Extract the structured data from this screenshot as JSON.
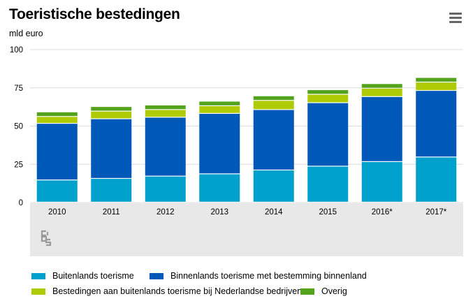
{
  "header": {
    "title": "Toeristische bestedingen",
    "unit": "mld euro"
  },
  "colors": {
    "buitenlands": "#00a1cd",
    "binnenlands": "#0058b8",
    "bestedingen": "#afcb05",
    "overig": "#53a31d",
    "grid": "#dcdcdc",
    "panel": "#e8e8e8"
  },
  "icons": {
    "menu": "hamburger-menu-icon",
    "logo": "cbs-logo-icon"
  },
  "chart_data": {
    "type": "bar",
    "stacked": true,
    "title": "Toeristische bestedingen",
    "ylabel": "mld euro",
    "ylim": [
      0,
      100
    ],
    "yticks": [
      "0",
      "25",
      "50",
      "75",
      "100"
    ],
    "categories": [
      "2010",
      "2011",
      "2012",
      "2013",
      "2014",
      "2015",
      "2016*",
      "2017*"
    ],
    "series": [
      {
        "name": "Buitenlands toerisme",
        "values": [
          14.5,
          15.5,
          17,
          18.5,
          21,
          23.5,
          26.5,
          29.5
        ]
      },
      {
        "name": "Binnenlands toerisme met bestemming binnenland",
        "values": [
          37,
          39,
          38.5,
          39.5,
          39.5,
          41.5,
          42.5,
          43.5
        ]
      },
      {
        "name": "Bestedingen aan buitenlands toerisme bij Nederlandse bedrijven",
        "values": [
          4.5,
          5,
          5,
          5,
          6,
          5.5,
          5.5,
          5.5
        ]
      },
      {
        "name": "Overig",
        "values": [
          3,
          3,
          3,
          3,
          3,
          3,
          3,
          3
        ]
      }
    ],
    "grid": true,
    "legend_position": "bottom"
  }
}
